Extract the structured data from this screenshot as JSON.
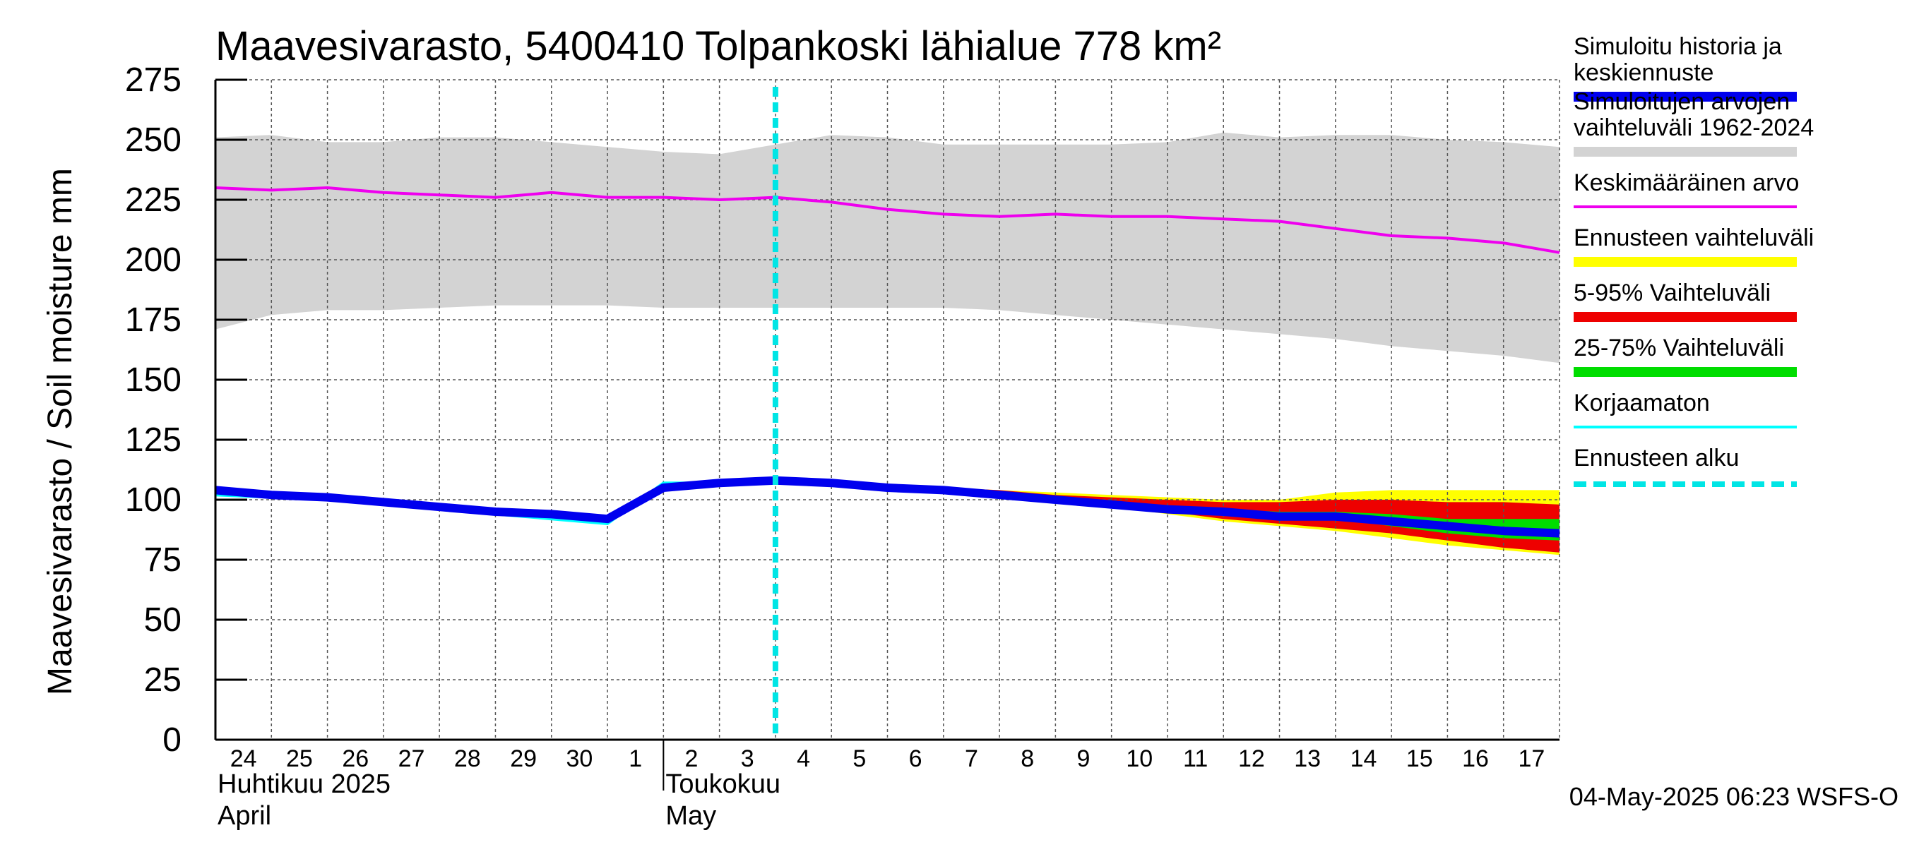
{
  "title": "Maavesivarasto, 5400410 Tolpankoski lähialue 778 km²",
  "ylabel": "Maavesivarasto / Soil moisture   mm",
  "timestamp": "04-May-2025 06:23 WSFS-O",
  "month_labels": [
    {
      "day": 24,
      "line1": "Huhtikuu  2025",
      "line2": "April"
    },
    {
      "day": 32,
      "line1": "Toukokuu",
      "line2": "May"
    }
  ],
  "legend": [
    {
      "label": "Simuloitu historia ja\nkeskiennuste",
      "color": "#0000ee",
      "style": "thick"
    },
    {
      "label": "Simuloitujen arvojen\nvaihteluväli 1962-2024",
      "color": "#d3d3d3",
      "style": "thick"
    },
    {
      "label": "Keskimääräinen arvo",
      "color": "#ee00ee",
      "style": "thin"
    },
    {
      "label": "Ennusteen vaihteluväli",
      "color": "#ffff00",
      "style": "thick"
    },
    {
      "label": "5-95% Vaihteluväli",
      "color": "#ee0000",
      "style": "thick"
    },
    {
      "label": "25-75% Vaihteluväli",
      "color": "#00dd00",
      "style": "thick"
    },
    {
      "label": "Korjaamaton",
      "color": "#00ffff",
      "style": "thin"
    },
    {
      "label": "Ennusteen alku",
      "color": "#00e5e5",
      "style": "dashed"
    }
  ],
  "chart_data": {
    "type": "area",
    "xlabel": "",
    "ylabel": "Maavesivarasto / Soil moisture   mm",
    "ylim": [
      0,
      275
    ],
    "yticks": [
      0,
      25,
      50,
      75,
      100,
      125,
      150,
      175,
      200,
      225,
      250,
      275
    ],
    "x_tick_labels": [
      "24",
      "25",
      "26",
      "27",
      "28",
      "29",
      "30",
      "1",
      "2",
      "3",
      "4",
      "5",
      "6",
      "7",
      "8",
      "9",
      "10",
      "11",
      "12",
      "13",
      "14",
      "15",
      "16",
      "17"
    ],
    "x_unit": "day (24 = 24 Apr 2025, 31 = 1 May 2025)",
    "xlim": [
      24,
      48
    ],
    "forecast_start": 34.0,
    "grid": true,
    "series": [
      {
        "name": "Simuloitujen arvojen vaihteluväli 1962-2024",
        "kind": "band",
        "x": [
          24,
          25,
          26,
          27,
          28,
          29,
          30,
          31,
          32,
          33,
          34,
          35,
          36,
          37,
          38,
          39,
          40,
          41,
          42,
          43,
          44,
          45,
          46,
          47,
          48
        ],
        "low": [
          171,
          177,
          179,
          179,
          180,
          181,
          181,
          181,
          180,
          180,
          180,
          180,
          180,
          180,
          179,
          177,
          175,
          173,
          171,
          169,
          167,
          164,
          162,
          160,
          157
        ],
        "high": [
          251,
          252,
          249,
          249,
          251,
          251,
          249,
          247,
          245,
          244,
          248,
          252,
          251,
          248,
          248,
          248,
          248,
          249,
          253,
          251,
          252,
          252,
          250,
          249,
          247
        ]
      },
      {
        "name": "Keskimääräinen arvo",
        "kind": "line",
        "x": [
          24,
          25,
          26,
          27,
          28,
          29,
          30,
          31,
          32,
          33,
          34,
          35,
          36,
          37,
          38,
          39,
          40,
          41,
          42,
          43,
          44,
          45,
          46,
          47,
          48
        ],
        "y": [
          230,
          229,
          230,
          228,
          227,
          226,
          228,
          226,
          226,
          225,
          226,
          224,
          221,
          219,
          218,
          219,
          218,
          218,
          217,
          216,
          213,
          210,
          209,
          207,
          203
        ]
      },
      {
        "name": "Ennusteen vaihteluväli",
        "kind": "band",
        "x": [
          34,
          35,
          36,
          37,
          38,
          39,
          40,
          41,
          42,
          43,
          44,
          45,
          46,
          47,
          48
        ],
        "low": [
          108,
          107,
          106,
          105,
          103,
          101,
          97,
          94,
          91,
          89,
          87,
          84,
          81,
          79,
          77
        ],
        "high": [
          108,
          107,
          106,
          105,
          104,
          103,
          102,
          101,
          100,
          100,
          103,
          104,
          104,
          104,
          104
        ]
      },
      {
        "name": "5-95% Vaihteluväli",
        "kind": "band",
        "x": [
          34,
          35,
          36,
          37,
          38,
          39,
          40,
          41,
          42,
          43,
          44,
          45,
          46,
          47,
          48
        ],
        "low": [
          108,
          107,
          106,
          105,
          103,
          101,
          98,
          95,
          92,
          90,
          88,
          86,
          83,
          80,
          78
        ],
        "high": [
          108,
          107,
          106,
          105,
          104,
          102,
          101,
          100,
          99,
          99,
          100,
          100,
          99,
          99,
          98
        ]
      },
      {
        "name": "25-75% Vaihteluväli",
        "kind": "band",
        "x": [
          34,
          35,
          36,
          37,
          38,
          39,
          40,
          41,
          42,
          43,
          44,
          45,
          46,
          47,
          48
        ],
        "low": [
          108,
          107,
          106,
          105,
          103,
          101,
          99,
          97,
          95,
          93,
          92,
          89,
          86,
          84,
          83
        ],
        "high": [
          108,
          107,
          106,
          105,
          103,
          101,
          99,
          97,
          96,
          95,
          95,
          94,
          92,
          92,
          92
        ]
      },
      {
        "name": "Korjaamaton",
        "kind": "line",
        "x": [
          24,
          25,
          26,
          27,
          28,
          29,
          30,
          31,
          32,
          33,
          34,
          35,
          36,
          37,
          38,
          39,
          40,
          41,
          42,
          43,
          44,
          45,
          46,
          47,
          48
        ],
        "y": [
          102,
          101,
          100,
          98,
          96,
          94,
          92,
          90,
          107,
          107,
          108,
          107,
          105,
          104,
          102,
          100,
          98,
          96,
          94,
          92,
          92,
          91,
          89,
          87,
          86
        ]
      },
      {
        "name": "Simuloitu historia ja keskiennuste",
        "kind": "line",
        "x": [
          24,
          25,
          26,
          27,
          28,
          29,
          30,
          31,
          32,
          33,
          34,
          35,
          36,
          37,
          38,
          39,
          40,
          41,
          42,
          43,
          44,
          45,
          46,
          47,
          48
        ],
        "y": [
          104,
          102,
          101,
          99,
          97,
          95,
          94,
          92,
          105,
          107,
          108,
          107,
          105,
          104,
          102,
          100,
          98,
          96,
          95,
          93,
          93,
          91,
          89,
          87,
          86
        ]
      }
    ]
  }
}
